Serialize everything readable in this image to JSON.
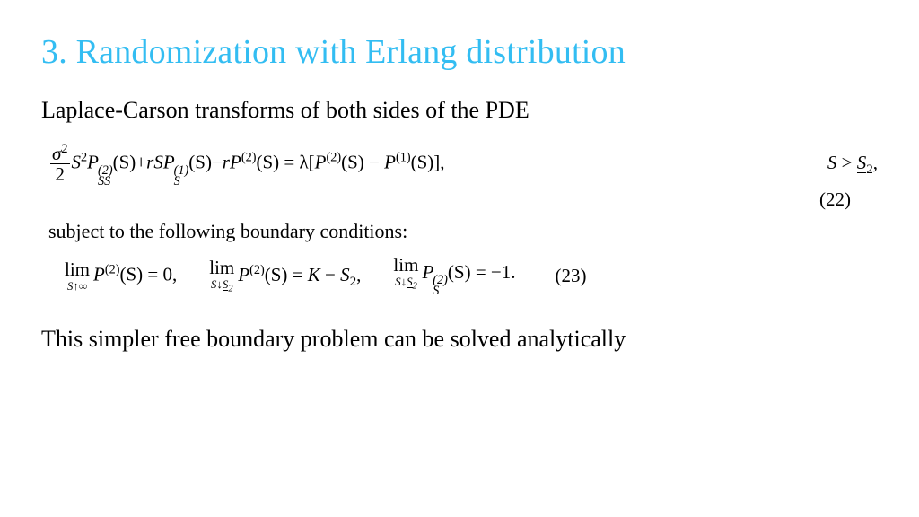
{
  "title": "3. Randomization with Erlang distribution",
  "intro": "Laplace-Carson transforms of both sides of the PDE",
  "eq22": {
    "frac_num": "σ",
    "frac_num_sup": "2",
    "frac_den": "2",
    "t1_a": "S",
    "t1_a_sup": "2",
    "t1_P": "P",
    "t1_sub": "SS",
    "t1_sup": "(2)",
    "t1_arg": "(S)",
    "plus": "+",
    "t2_r": "r",
    "t2_S": "S",
    "t2_P": "P",
    "t2_sub": "S",
    "t2_sup": "(1)",
    "t2_arg": "(S)",
    "minus": "−",
    "t3_r": "r",
    "t3_P": "P",
    "t3_sup": "(2)",
    "t3_arg": "(S)",
    "eq": " = ",
    "lambda": "λ",
    "lb": "[",
    "r1_P": "P",
    "r1_sup": "(2)",
    "r1_arg": "(S)",
    "r_minus": " − ",
    "r2_P": "P",
    "r2_sup": "(1)",
    "r2_arg": "(S)",
    "rb": "],",
    "cond_S": "S",
    "cond_gt": " > ",
    "cond_Sbar": "S",
    "cond_sub": "2",
    "cond_comma": ",",
    "num": "(22)"
  },
  "subject": "subject to the following boundary conditions:",
  "eq23": {
    "lim": "lim",
    "lim1_under_a": "S",
    "lim1_under_arrow": "↑",
    "lim1_under_b": "∞",
    "p1_P": "P",
    "p1_sup": "(2)",
    "p1_arg": "(S) = 0,",
    "lim2_under_a": "S",
    "lim2_under_arrow": "↓",
    "lim2_under_b": "S",
    "lim2_under_sub": "2",
    "p2_P": "P",
    "p2_sup": "(2)",
    "p2_arg_a": "(S) = ",
    "p2_K": "K",
    "p2_minus": " − ",
    "p2_Sbar": "S",
    "p2_sub": "2",
    "p2_comma": ",",
    "p3_P": "P",
    "p3_sub": "S",
    "p3_sup": "(2)",
    "p3_arg": "(S) = −1.",
    "num": "(23)"
  },
  "conclusion": "This simpler free boundary problem can be solved analytically",
  "colors": {
    "title": "#33bdf2",
    "text": "#000000",
    "background": "#ffffff"
  },
  "fonts": {
    "family": "Times New Roman",
    "title_size_pt": 29,
    "body_size_pt": 20,
    "eq_size_pt": 16
  }
}
